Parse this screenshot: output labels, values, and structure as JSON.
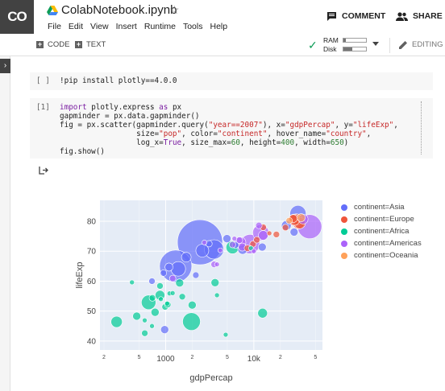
{
  "header": {
    "logo": "CO",
    "title": "ColabNotebook.ipynb",
    "star": "☆",
    "menu": [
      "File",
      "Edit",
      "View",
      "Insert",
      "Runtime",
      "Tools",
      "Help"
    ],
    "comment": "COMMENT",
    "share": "SHARE"
  },
  "toolbar": {
    "code": "CODE",
    "text": "TEXT",
    "ram": "RAM",
    "disk": "Disk",
    "ram_fill": 0.1,
    "disk_fill": 0.4,
    "editing": "EDITING"
  },
  "cells": {
    "cell1_bracket": "[ ]",
    "cell1_code": "!pip install plotly==4.0.0",
    "cell2_bracket": "[1]",
    "cell2": {
      "l1_kw1": "import",
      "l1_mid": " plotly.express ",
      "l1_kw2": "as",
      "l1_end": " px",
      "l2": "gapminder = px.data.gapminder()",
      "l3_a": "fig = px.scatter(gapminder.query(",
      "l3_s1": "\"year==2007\"",
      "l3_b": "), x=",
      "l3_s2": "\"gdpPercap\"",
      "l3_c": ", y=",
      "l3_s3": "\"lifeExp\"",
      "l3_d": ",",
      "l4_a": "                 size=",
      "l4_s1": "\"pop\"",
      "l4_b": ", color=",
      "l4_s2": "\"continent\"",
      "l4_c": ", hover_name=",
      "l4_s3": "\"country\"",
      "l4_d": ",",
      "l5_a": "                 log_x=",
      "l5_kw": "True",
      "l5_b": ", size_max=",
      "l5_n1": "60",
      "l5_c": ", height=",
      "l5_n2": "400",
      "l5_d": ", width=",
      "l5_n3": "650",
      "l5_e": ")",
      "l6": "fig.show()"
    }
  },
  "chart_data": {
    "type": "scatter",
    "xlabel": "gdpPercap",
    "ylabel": "lifeExp",
    "x_scale": "log",
    "xlim": [
      180,
      60000
    ],
    "ylim": [
      37,
      87
    ],
    "y_ticks": [
      40,
      50,
      60,
      70,
      80
    ],
    "x_ticks": [
      {
        "value": 200,
        "label": "2"
      },
      {
        "value": 500,
        "label": "5"
      },
      {
        "value": 1000,
        "label": "1000"
      },
      {
        "value": 2000,
        "label": "2"
      },
      {
        "value": 5000,
        "label": "5"
      },
      {
        "value": 10000,
        "label": "10k"
      },
      {
        "value": 20000,
        "label": "2"
      },
      {
        "value": 50000,
        "label": "5"
      }
    ],
    "legend_placement": "right",
    "series": [
      {
        "name": "continent=Asia",
        "color": "#636efa",
        "points": [
          {
            "x": 2452,
            "y": 73,
            "r": 28
          },
          {
            "x": 1300,
            "y": 65,
            "r": 20
          },
          {
            "x": 3540,
            "y": 70.6,
            "r": 12
          },
          {
            "x": 2605,
            "y": 70.2,
            "r": 8
          },
          {
            "x": 1391,
            "y": 64.1,
            "r": 9
          },
          {
            "x": 975,
            "y": 43.8,
            "r": 5
          },
          {
            "x": 1091,
            "y": 64.7,
            "r": 5
          },
          {
            "x": 2200,
            "y": 62,
            "r": 4
          },
          {
            "x": 1714,
            "y": 68,
            "r": 6
          },
          {
            "x": 944,
            "y": 62.7,
            "r": 4
          },
          {
            "x": 4959,
            "y": 74.2,
            "r": 5
          },
          {
            "x": 7458,
            "y": 70.6,
            "r": 6
          },
          {
            "x": 12452,
            "y": 71.4,
            "r": 5
          },
          {
            "x": 31656,
            "y": 82.6,
            "r": 10
          },
          {
            "x": 23348,
            "y": 78.6,
            "r": 6
          },
          {
            "x": 28604,
            "y": 76.4,
            "r": 5
          },
          {
            "x": 6200,
            "y": 72,
            "r": 4
          },
          {
            "x": 3100,
            "y": 72.5,
            "r": 4
          },
          {
            "x": 700,
            "y": 60,
            "r": 4
          }
        ]
      },
      {
        "name": "continent=Europe",
        "color": "#ef553b",
        "points": [
          {
            "x": 32170,
            "y": 79.3,
            "r": 7
          },
          {
            "x": 30470,
            "y": 80.6,
            "r": 7
          },
          {
            "x": 33203,
            "y": 79.4,
            "r": 7
          },
          {
            "x": 28570,
            "y": 80.5,
            "r": 7
          },
          {
            "x": 27970,
            "y": 80.9,
            "r": 5
          },
          {
            "x": 12779,
            "y": 78,
            "r": 4
          },
          {
            "x": 9786,
            "y": 72.4,
            "r": 4
          },
          {
            "x": 10808,
            "y": 73.8,
            "r": 4
          },
          {
            "x": 18008,
            "y": 75.6,
            "r": 4
          },
          {
            "x": 22833,
            "y": 77.9,
            "r": 4
          },
          {
            "x": 8458,
            "y": 71,
            "r": 4
          },
          {
            "x": 15000,
            "y": 76,
            "r": 3
          }
        ]
      },
      {
        "name": "continent=Africa",
        "color": "#00cc96",
        "points": [
          {
            "x": 1963,
            "y": 46.5,
            "r": 11
          },
          {
            "x": 2000,
            "y": 52,
            "r": 5
          },
          {
            "x": 12570,
            "y": 49.3,
            "r": 6
          },
          {
            "x": 5728,
            "y": 71.3,
            "r": 8
          },
          {
            "x": 641,
            "y": 52.9,
            "r": 9
          },
          {
            "x": 278,
            "y": 46.4,
            "r": 7
          },
          {
            "x": 863,
            "y": 55.3,
            "r": 6
          },
          {
            "x": 470,
            "y": 48.3,
            "r": 5
          },
          {
            "x": 759,
            "y": 49.6,
            "r": 5
          },
          {
            "x": 1441,
            "y": 59.4,
            "r": 5
          },
          {
            "x": 986,
            "y": 51.4,
            "r": 4
          },
          {
            "x": 580,
            "y": 42.6,
            "r": 4
          },
          {
            "x": 707,
            "y": 54.4,
            "r": 4
          },
          {
            "x": 1056,
            "y": 52.2,
            "r": 4
          },
          {
            "x": 4797,
            "y": 42.1,
            "r": 3
          },
          {
            "x": 1543,
            "y": 54.8,
            "r": 4
          },
          {
            "x": 863,
            "y": 58.4,
            "r": 4
          },
          {
            "x": 1107,
            "y": 55.9,
            "r": 3
          },
          {
            "x": 415,
            "y": 59.6,
            "r": 3
          },
          {
            "x": 3820,
            "y": 55.3,
            "r": 3
          },
          {
            "x": 9270,
            "y": 71,
            "r": 3
          },
          {
            "x": 579,
            "y": 46.9,
            "r": 3
          },
          {
            "x": 1041,
            "y": 52.5,
            "r": 3
          },
          {
            "x": 1200,
            "y": 56,
            "r": 3
          },
          {
            "x": 883,
            "y": 54,
            "r": 3
          },
          {
            "x": 3632,
            "y": 59.5,
            "r": 5
          },
          {
            "x": 700,
            "y": 45,
            "r": 3
          }
        ]
      },
      {
        "name": "continent=Americas",
        "color": "#ab63fa",
        "points": [
          {
            "x": 42952,
            "y": 78.2,
            "r": 15
          },
          {
            "x": 9066,
            "y": 72.4,
            "r": 12
          },
          {
            "x": 11978,
            "y": 76.2,
            "r": 10
          },
          {
            "x": 12779,
            "y": 75.3,
            "r": 6
          },
          {
            "x": 7007,
            "y": 72.9,
            "r": 7
          },
          {
            "x": 36319,
            "y": 80.7,
            "r": 6
          },
          {
            "x": 7408,
            "y": 71.4,
            "r": 5
          },
          {
            "x": 6873,
            "y": 73.7,
            "r": 4
          },
          {
            "x": 11416,
            "y": 78.6,
            "r": 4
          },
          {
            "x": 5728,
            "y": 72.2,
            "r": 4
          },
          {
            "x": 6025,
            "y": 74.2,
            "r": 3
          },
          {
            "x": 3548,
            "y": 65.6,
            "r": 4
          },
          {
            "x": 4173,
            "y": 70.3,
            "r": 3
          },
          {
            "x": 2749,
            "y": 72.9,
            "r": 3
          },
          {
            "x": 1202,
            "y": 60.9,
            "r": 4
          },
          {
            "x": 3822,
            "y": 65.6,
            "r": 3
          },
          {
            "x": 10000,
            "y": 70,
            "r": 3
          }
        ]
      },
      {
        "name": "continent=Oceania",
        "color": "#ffa15a",
        "points": [
          {
            "x": 34435,
            "y": 81.2,
            "r": 5
          },
          {
            "x": 25185,
            "y": 80.2,
            "r": 4
          }
        ]
      }
    ]
  }
}
